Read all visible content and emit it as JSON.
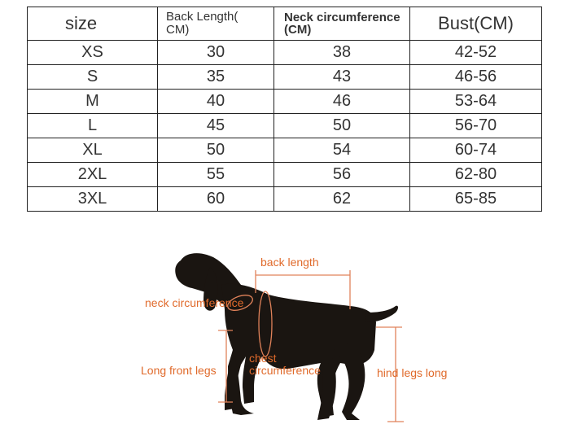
{
  "table": {
    "headers": {
      "size": "size",
      "back_length_line1": "Back Length(",
      "back_length_line2": "CM)",
      "neck_line1": "Neck circumference",
      "neck_line2": "(CM)",
      "bust": "Bust(CM)"
    },
    "rows": [
      {
        "size": "XS",
        "back": "30",
        "neck": "38",
        "bust": "42-52"
      },
      {
        "size": "S",
        "back": "35",
        "neck": "43",
        "bust": "46-56"
      },
      {
        "size": "M",
        "back": "40",
        "neck": "46",
        "bust": "53-64"
      },
      {
        "size": "L",
        "back": "45",
        "neck": "50",
        "bust": "56-70"
      },
      {
        "size": "XL",
        "back": "50",
        "neck": "54",
        "bust": "60-74"
      },
      {
        "size": "2XL",
        "back": "55",
        "neck": "56",
        "bust": "62-80"
      },
      {
        "size": "3XL",
        "back": "60",
        "neck": "62",
        "bust": "65-85"
      }
    ]
  },
  "diagram": {
    "labels": {
      "back_length": "back length",
      "neck_circumference": "neck circumference",
      "chest_line1": "chest",
      "chest_line2": "circumference",
      "front_legs": "Long front legs",
      "hind_legs": "hind legs long"
    },
    "colors": {
      "label": "#e06a2b",
      "measure_line": "#e0825a",
      "dog": "#1a1511"
    }
  }
}
